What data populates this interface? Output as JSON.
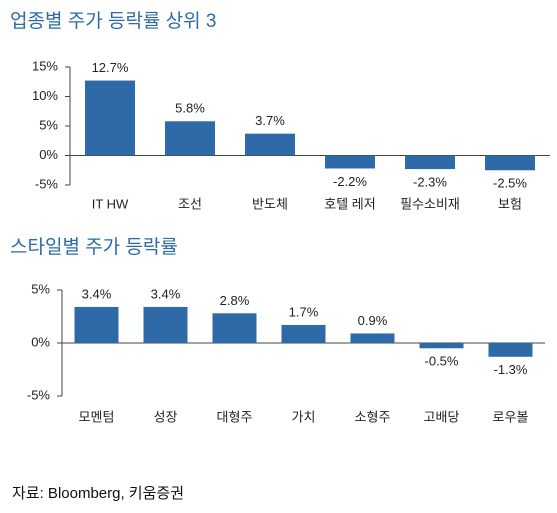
{
  "chart_data": [
    {
      "type": "bar",
      "title": "업종별 주가 등락률 상위 3",
      "categories": [
        "IT HW",
        "조선",
        "반도체",
        "호텔 레저",
        "필수소비재",
        "보험"
      ],
      "values": [
        12.7,
        5.8,
        3.7,
        -2.2,
        -2.3,
        -2.5
      ],
      "value_labels": [
        "12.7%",
        "5.8%",
        "3.7%",
        "-2.2%",
        "-2.3%",
        "-2.5%"
      ],
      "color": "#2e6aa8",
      "ylim": [
        -5,
        15
      ],
      "yticks": [
        {
          "value": 15,
          "label": "15%"
        },
        {
          "value": 10,
          "label": "10%"
        },
        {
          "value": 5,
          "label": "5%"
        },
        {
          "value": 0,
          "label": "0%"
        },
        {
          "value": -5,
          "label": "-5%"
        }
      ]
    },
    {
      "type": "bar",
      "title": "스타일별 주가 등락률",
      "categories": [
        "모멘텀",
        "성장",
        "대형주",
        "가치",
        "소형주",
        "고배당",
        "로우볼"
      ],
      "values": [
        3.4,
        3.4,
        2.8,
        1.7,
        0.9,
        -0.5,
        -1.3
      ],
      "value_labels": [
        "3.4%",
        "3.4%",
        "2.8%",
        "1.7%",
        "0.9%",
        "-0.5%",
        "-1.3%"
      ],
      "color": "#2e6aa8",
      "ylim": [
        -5,
        5
      ],
      "yticks": [
        {
          "value": 5,
          "label": "5%"
        },
        {
          "value": 0,
          "label": "0%"
        },
        {
          "value": -5,
          "label": "-5%"
        }
      ]
    }
  ],
  "source": "자료: Bloomberg, 키움증권"
}
